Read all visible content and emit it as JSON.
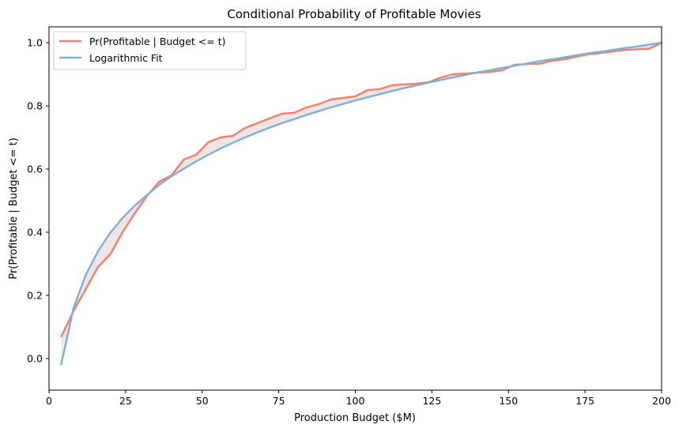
{
  "chart_data": {
    "type": "line",
    "title": "Conditional Probability of Profitable Movies",
    "xlabel": "Production Budget ($M)",
    "ylabel": "Pr(Profitable | Budget <= t)",
    "xlim": [
      0,
      200
    ],
    "ylim": [
      -0.1,
      1.05
    ],
    "xticks": [
      0,
      25,
      50,
      75,
      100,
      125,
      150,
      175,
      200
    ],
    "yticks": [
      0.0,
      0.2,
      0.4,
      0.6,
      0.8,
      1.0
    ],
    "xtick_labels": [
      "0",
      "25",
      "50",
      "75",
      "100",
      "125",
      "150",
      "175",
      "200"
    ],
    "ytick_labels": [
      "0.0",
      "0.2",
      "0.4",
      "0.6",
      "0.8",
      "1.0"
    ],
    "grid": false,
    "legend_position": "upper-left",
    "fill_between_series": true,
    "series": [
      {
        "name": "Pr(Profitable | Budget <= t)",
        "color": "#f47f6d",
        "x": [
          4,
          8,
          12,
          16,
          20,
          24,
          28,
          32,
          36,
          40,
          44,
          48,
          52,
          56,
          60,
          64,
          68,
          72,
          76,
          80,
          84,
          88,
          92,
          96,
          100,
          104,
          108,
          112,
          116,
          120,
          124,
          128,
          132,
          136,
          140,
          144,
          148,
          152,
          156,
          160,
          164,
          168,
          172,
          176,
          180,
          184,
          188,
          192,
          196,
          200
        ],
        "values": [
          0.07,
          0.15,
          0.22,
          0.29,
          0.33,
          0.4,
          0.46,
          0.515,
          0.56,
          0.58,
          0.63,
          0.645,
          0.685,
          0.7,
          0.705,
          0.73,
          0.745,
          0.76,
          0.775,
          0.778,
          0.795,
          0.805,
          0.82,
          0.825,
          0.83,
          0.85,
          0.853,
          0.865,
          0.868,
          0.87,
          0.875,
          0.89,
          0.9,
          0.902,
          0.905,
          0.907,
          0.913,
          0.93,
          0.932,
          0.933,
          0.942,
          0.947,
          0.955,
          0.963,
          0.967,
          0.972,
          0.977,
          0.979,
          0.981,
          1.0
        ]
      },
      {
        "name": "Logarithmic Fit",
        "color": "#7eb0d4",
        "x": [
          4,
          8,
          12,
          16,
          20,
          24,
          28,
          32,
          36,
          40,
          44,
          48,
          52,
          56,
          60,
          64,
          68,
          72,
          76,
          80,
          84,
          88,
          92,
          96,
          100,
          104,
          108,
          112,
          116,
          120,
          124,
          128,
          132,
          136,
          140,
          144,
          148,
          152,
          156,
          160,
          164,
          168,
          172,
          176,
          180,
          184,
          188,
          192,
          196,
          200
        ],
        "values": [
          -0.018,
          0.16,
          0.265,
          0.34,
          0.398,
          0.445,
          0.484,
          0.518,
          0.55,
          0.577,
          0.601,
          0.624,
          0.645,
          0.665,
          0.683,
          0.7,
          0.716,
          0.731,
          0.745,
          0.758,
          0.771,
          0.783,
          0.795,
          0.806,
          0.817,
          0.827,
          0.837,
          0.847,
          0.856,
          0.865,
          0.874,
          0.882,
          0.89,
          0.898,
          0.906,
          0.913,
          0.92,
          0.927,
          0.934,
          0.941,
          0.947,
          0.953,
          0.96,
          0.966,
          0.971,
          0.977,
          0.983,
          0.988,
          0.994,
          1.0
        ]
      }
    ]
  }
}
